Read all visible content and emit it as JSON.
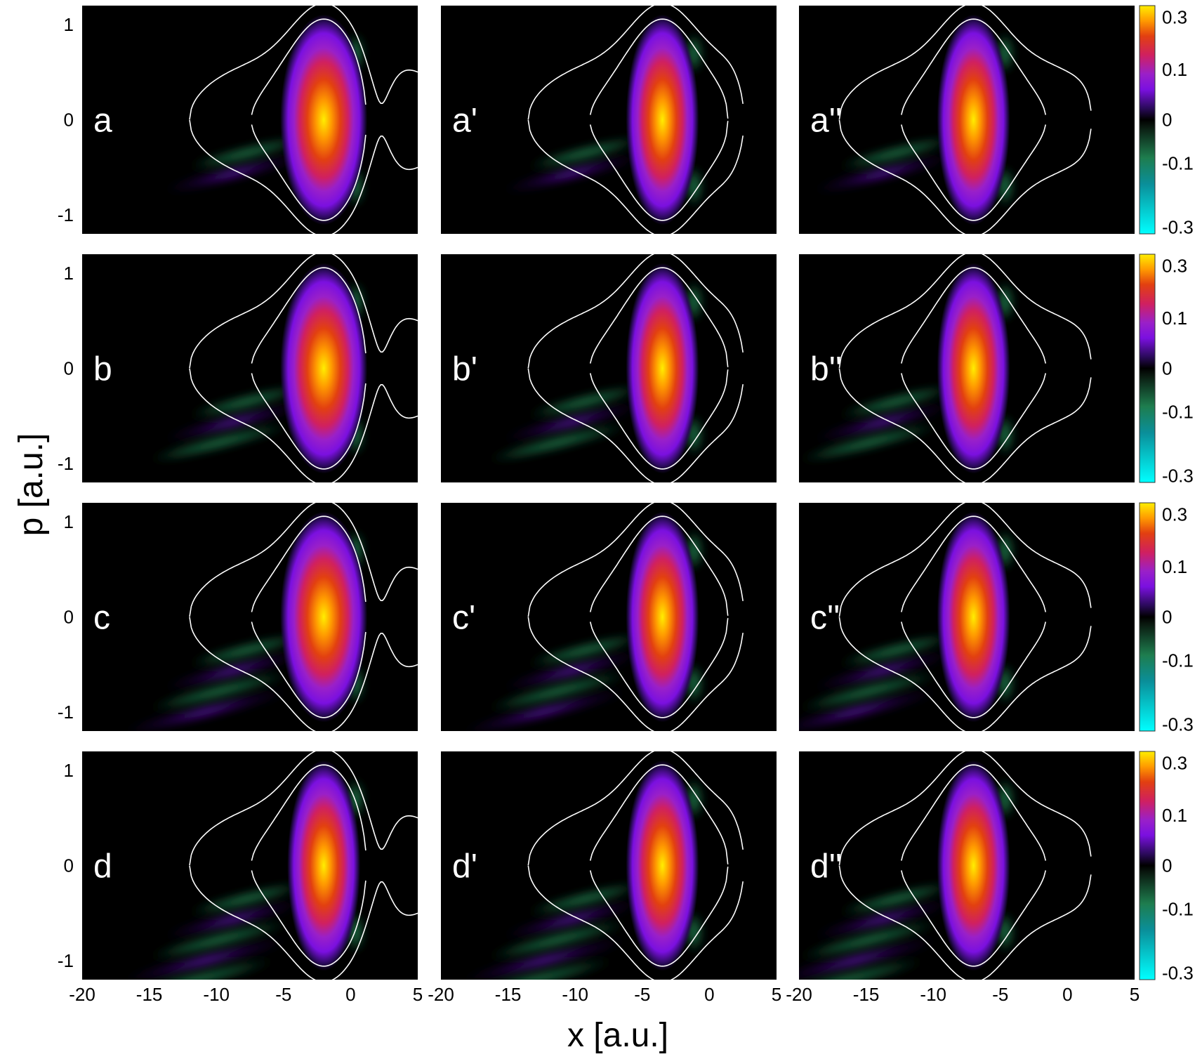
{
  "chart_data": {
    "type": "heatmap",
    "xlabel": "x [a.u.]",
    "ylabel": "p [a.u.]",
    "xlim": [
      -20,
      5
    ],
    "ylim": [
      -1.2,
      1.2
    ],
    "x_ticks": [
      -20,
      -15,
      -10,
      -5,
      0,
      5
    ],
    "x_tick_labels": [
      "-20",
      "-15",
      "-10",
      "-5",
      "0",
      "5"
    ],
    "y_ticks": [
      -1,
      0,
      1
    ],
    "y_tick_labels": [
      "-1",
      "0",
      "1"
    ],
    "colorbar": {
      "range": [
        -0.3,
        0.3
      ],
      "ticks": [
        0.3,
        0.1,
        0,
        -0.1,
        -0.3
      ],
      "tick_labels": [
        "0.3",
        "0.1",
        "0",
        "-0.1",
        "-0.3"
      ],
      "colormap": [
        {
          "v": -0.3,
          "color": "#00ffff"
        },
        {
          "v": -0.17,
          "color": "#0a8f9a"
        },
        {
          "v": -0.1,
          "color": "#1e7d4e"
        },
        {
          "v": -0.02,
          "color": "#0a1a10"
        },
        {
          "v": 0.0,
          "color": "#000000"
        },
        {
          "v": 0.03,
          "color": "#2a0a5a"
        },
        {
          "v": 0.08,
          "color": "#7b10e0"
        },
        {
          "v": 0.12,
          "color": "#9a20c8"
        },
        {
          "v": 0.17,
          "color": "#d02060"
        },
        {
          "v": 0.22,
          "color": "#e24010"
        },
        {
          "v": 0.26,
          "color": "#ff9a00"
        },
        {
          "v": 0.3,
          "color": "#ffee00"
        }
      ]
    },
    "grid": false,
    "columns": [
      {
        "center_x": -2,
        "barrier_x": 2
      },
      {
        "center_x": -3.5,
        "barrier_x": 3.5
      },
      {
        "center_x": -7,
        "barrier_x": 3.5
      }
    ],
    "panels": [
      {
        "label": "a"
      },
      {
        "label": "a'"
      },
      {
        "label": "a''"
      },
      {
        "label": "b"
      },
      {
        "label": "b'"
      },
      {
        "label": "b''"
      },
      {
        "label": "c"
      },
      {
        "label": "c'"
      },
      {
        "label": "c''"
      },
      {
        "label": "d"
      },
      {
        "label": "d'"
      },
      {
        "label": "d''"
      }
    ]
  }
}
